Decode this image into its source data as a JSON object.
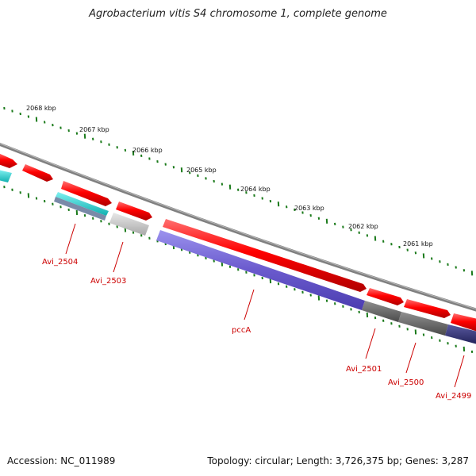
{
  "title": "Agrobacterium vitis S4 chromosome 1, complete genome",
  "footer": {
    "accession": "Accession: NC_011989",
    "topology": "Topology: circular; Length: 3,726,375 bp; Genes: 3,287"
  },
  "ticks": [
    "2068 kbp",
    "2067 kbp",
    "2066 kbp",
    "2065 kbp",
    "2064 kbp",
    "2063 kbp",
    "2062 kbp",
    "2061 kbp"
  ],
  "gene_labels": [
    "Avi_2504",
    "Avi_2503",
    "pccA",
    "Avi_2501",
    "Avi_2500",
    "Avi_2499"
  ],
  "colors": {
    "backbone": "#808080",
    "forward_cds": "#ff0000",
    "reverse_cds_pccA": "#6a5acd",
    "tick_marks": "#1a7a1a",
    "label": "#cc0000",
    "cyan_feature": "#19d4d4"
  }
}
